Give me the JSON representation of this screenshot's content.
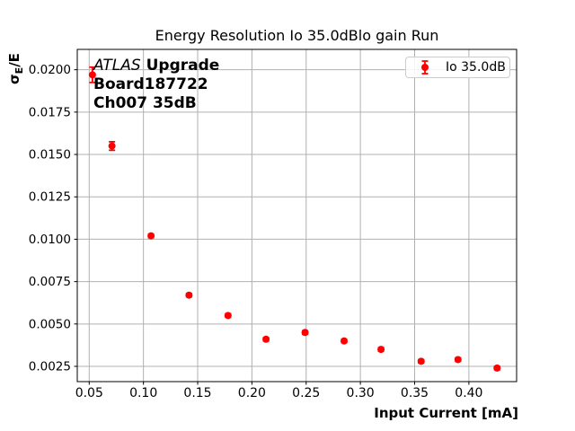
{
  "title": "Energy Resolution Io 35.0dBlo gain Run",
  "xlabel": "Input Current [mA]",
  "ylabel": {
    "sigma": "σ",
    "sub": "E",
    "rest": "/E"
  },
  "annotation": {
    "atlas": "ATLAS",
    "upgrade": "Upgrade",
    "line2": "Board187722",
    "line3": "Ch007 35dB"
  },
  "legend": {
    "label": "Io 35.0dB"
  },
  "colors": {
    "series": "#ff0000",
    "grid": "#b0b0b0",
    "frame": "#000000",
    "background": "#ffffff",
    "legend_border": "#cccccc"
  },
  "chart_data": {
    "type": "scatter",
    "title": "Energy Resolution Io 35.0dBlo gain Run",
    "xlabel": "Input Current [mA]",
    "ylabel": "sigma_E/E",
    "grid": true,
    "grid_color": "#b0b0b0",
    "legend_position": "upper right",
    "xlim": [
      0.039,
      0.444
    ],
    "ylim": [
      0.0016,
      0.0212
    ],
    "xticks": [
      0.05,
      0.1,
      0.15,
      0.2,
      0.25,
      0.3,
      0.35,
      0.4
    ],
    "xtick_labels": [
      "0.05",
      "0.10",
      "0.15",
      "0.20",
      "0.25",
      "0.30",
      "0.35",
      "0.40"
    ],
    "yticks": [
      0.0025,
      0.005,
      0.0075,
      0.01,
      0.0125,
      0.015,
      0.0175,
      0.02
    ],
    "ytick_labels": [
      "0.0025",
      "0.0050",
      "0.0075",
      "0.0100",
      "0.0125",
      "0.0150",
      "0.0175",
      "0.0200"
    ],
    "series": [
      {
        "name": "Io 35.0dB",
        "color": "#ff0000",
        "marker": "o",
        "x": [
          0.053,
          0.071,
          0.107,
          0.142,
          0.178,
          0.213,
          0.249,
          0.285,
          0.319,
          0.356,
          0.39,
          0.426
        ],
        "y": [
          0.0197,
          0.0155,
          0.0102,
          0.0067,
          0.0055,
          0.0041,
          0.0045,
          0.004,
          0.0035,
          0.0028,
          0.0029,
          0.0024
        ],
        "yerr": [
          0.00045,
          0.00025,
          0.0001,
          0.0001,
          0.0001,
          0.0001,
          0.0001,
          0.0001,
          0.0001,
          0.0001,
          0.0001,
          0.0001
        ]
      }
    ]
  }
}
